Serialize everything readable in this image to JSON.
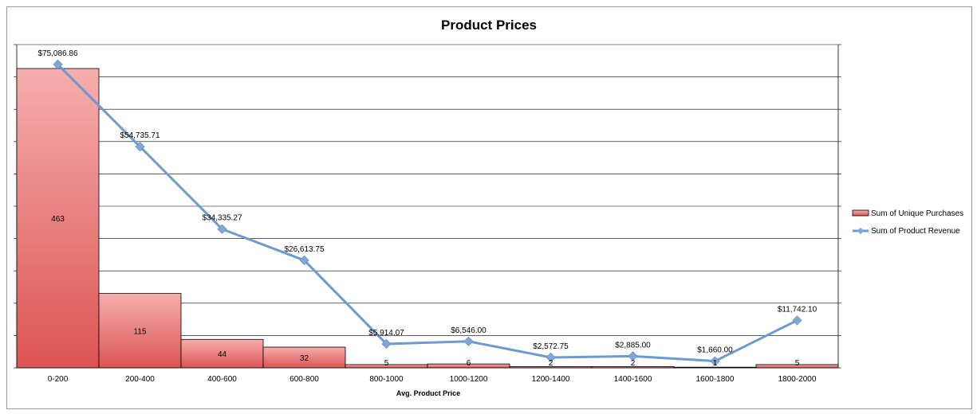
{
  "chart_data": {
    "type": "bar",
    "title": "Product Prices",
    "xlabel": "Avg. Product Price",
    "categories": [
      "0-200",
      "200-400",
      "400-600",
      "600-800",
      "800-1000",
      "1000-1200",
      "1200-1400",
      "1400-1600",
      "1600-1800",
      "1800-2000"
    ],
    "series": [
      {
        "name": "Sum of Unique Purchases",
        "type": "bar",
        "axis": "left",
        "values": [
          463,
          115,
          44,
          32,
          5,
          6,
          2,
          2,
          1,
          5
        ],
        "labels": [
          "463",
          "115",
          "44",
          "32",
          "5",
          "6",
          "2",
          "2",
          "1",
          "5"
        ]
      },
      {
        "name": "Sum of Product Revenue",
        "type": "line",
        "axis": "right",
        "values": [
          75086.86,
          54735.71,
          34335.27,
          26613.75,
          5914.07,
          6546.0,
          2572.75,
          2885.0,
          1660.0,
          11742.1
        ],
        "labels": [
          "$75,086.86",
          "$54,735.71",
          "$34,335.27",
          "$26,613.75",
          "$5,914.07",
          "$6,546.00",
          "$2,572.75",
          "$2,885.00",
          "$1,660.00",
          "$11,742.10"
        ]
      }
    ],
    "ylim_left": [
      0,
      500
    ],
    "ylim_right": [
      0,
      80000
    ],
    "grid": true,
    "legend_position": "right",
    "colors": {
      "bar_fill_top": "#f6aeae",
      "bar_fill_bottom": "#dc5454",
      "bar_stroke": "#000000",
      "line": "#6b9bd1",
      "marker": "#7fa8d8",
      "grid": "#000000"
    }
  }
}
